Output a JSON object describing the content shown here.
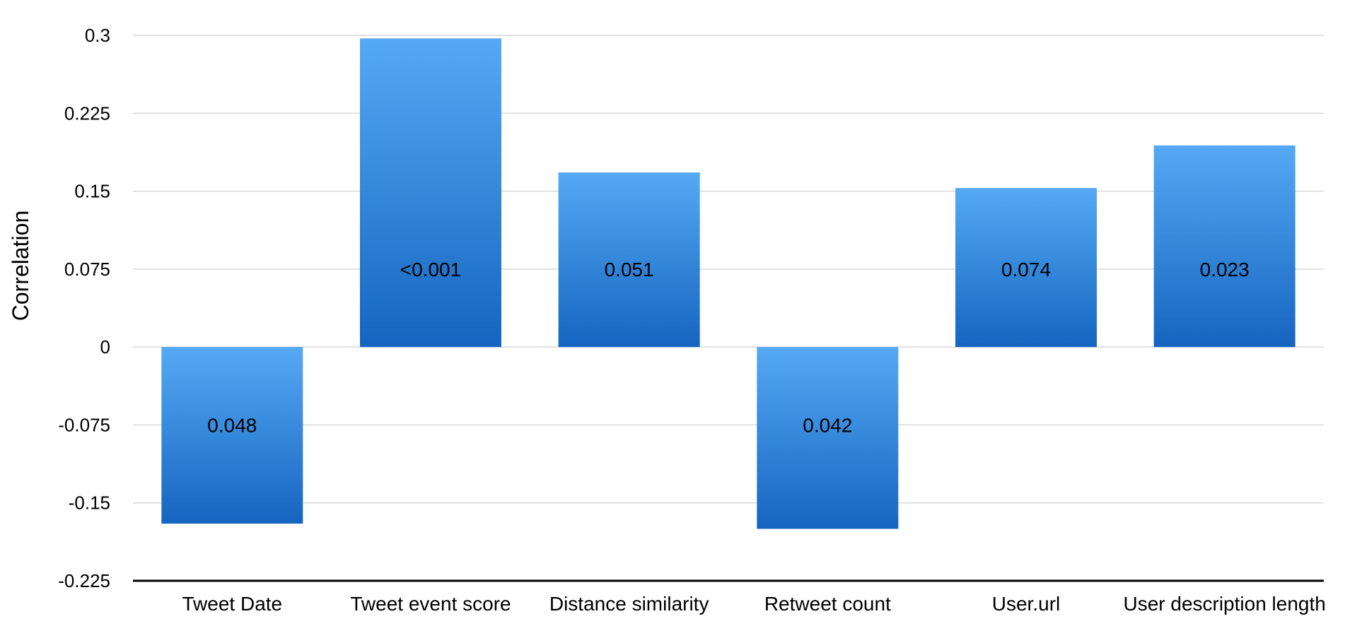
{
  "chart_data": {
    "type": "bar",
    "categories": [
      "Tweet Date",
      "Tweet event score",
      "Distance similarity",
      "Retweet count",
      "User.url",
      "User description length"
    ],
    "values": [
      -0.17,
      0.297,
      0.168,
      -0.175,
      0.153,
      0.194
    ],
    "bar_labels": [
      "0.048",
      "<0.001",
      "0.051",
      "0.042",
      "0.074",
      "0.023"
    ],
    "ylabel": "Correlation",
    "xlabel": "",
    "title": "",
    "ylim": [
      -0.225,
      0.3
    ],
    "yticks": [
      0.3,
      0.225,
      0.15,
      0.075,
      0,
      -0.075,
      -0.15,
      -0.225
    ],
    "ytick_labels": [
      "0.3",
      "0.225",
      "0.15",
      "0.075",
      "0",
      "-0.075",
      "-0.15",
      "-0.225"
    ],
    "grid": true,
    "legend": "none",
    "colors": {
      "bar_top": "#55a9f4",
      "bar_bottom": "#1565c0",
      "grid": "#d9d9d9",
      "axis": "#000000"
    }
  }
}
